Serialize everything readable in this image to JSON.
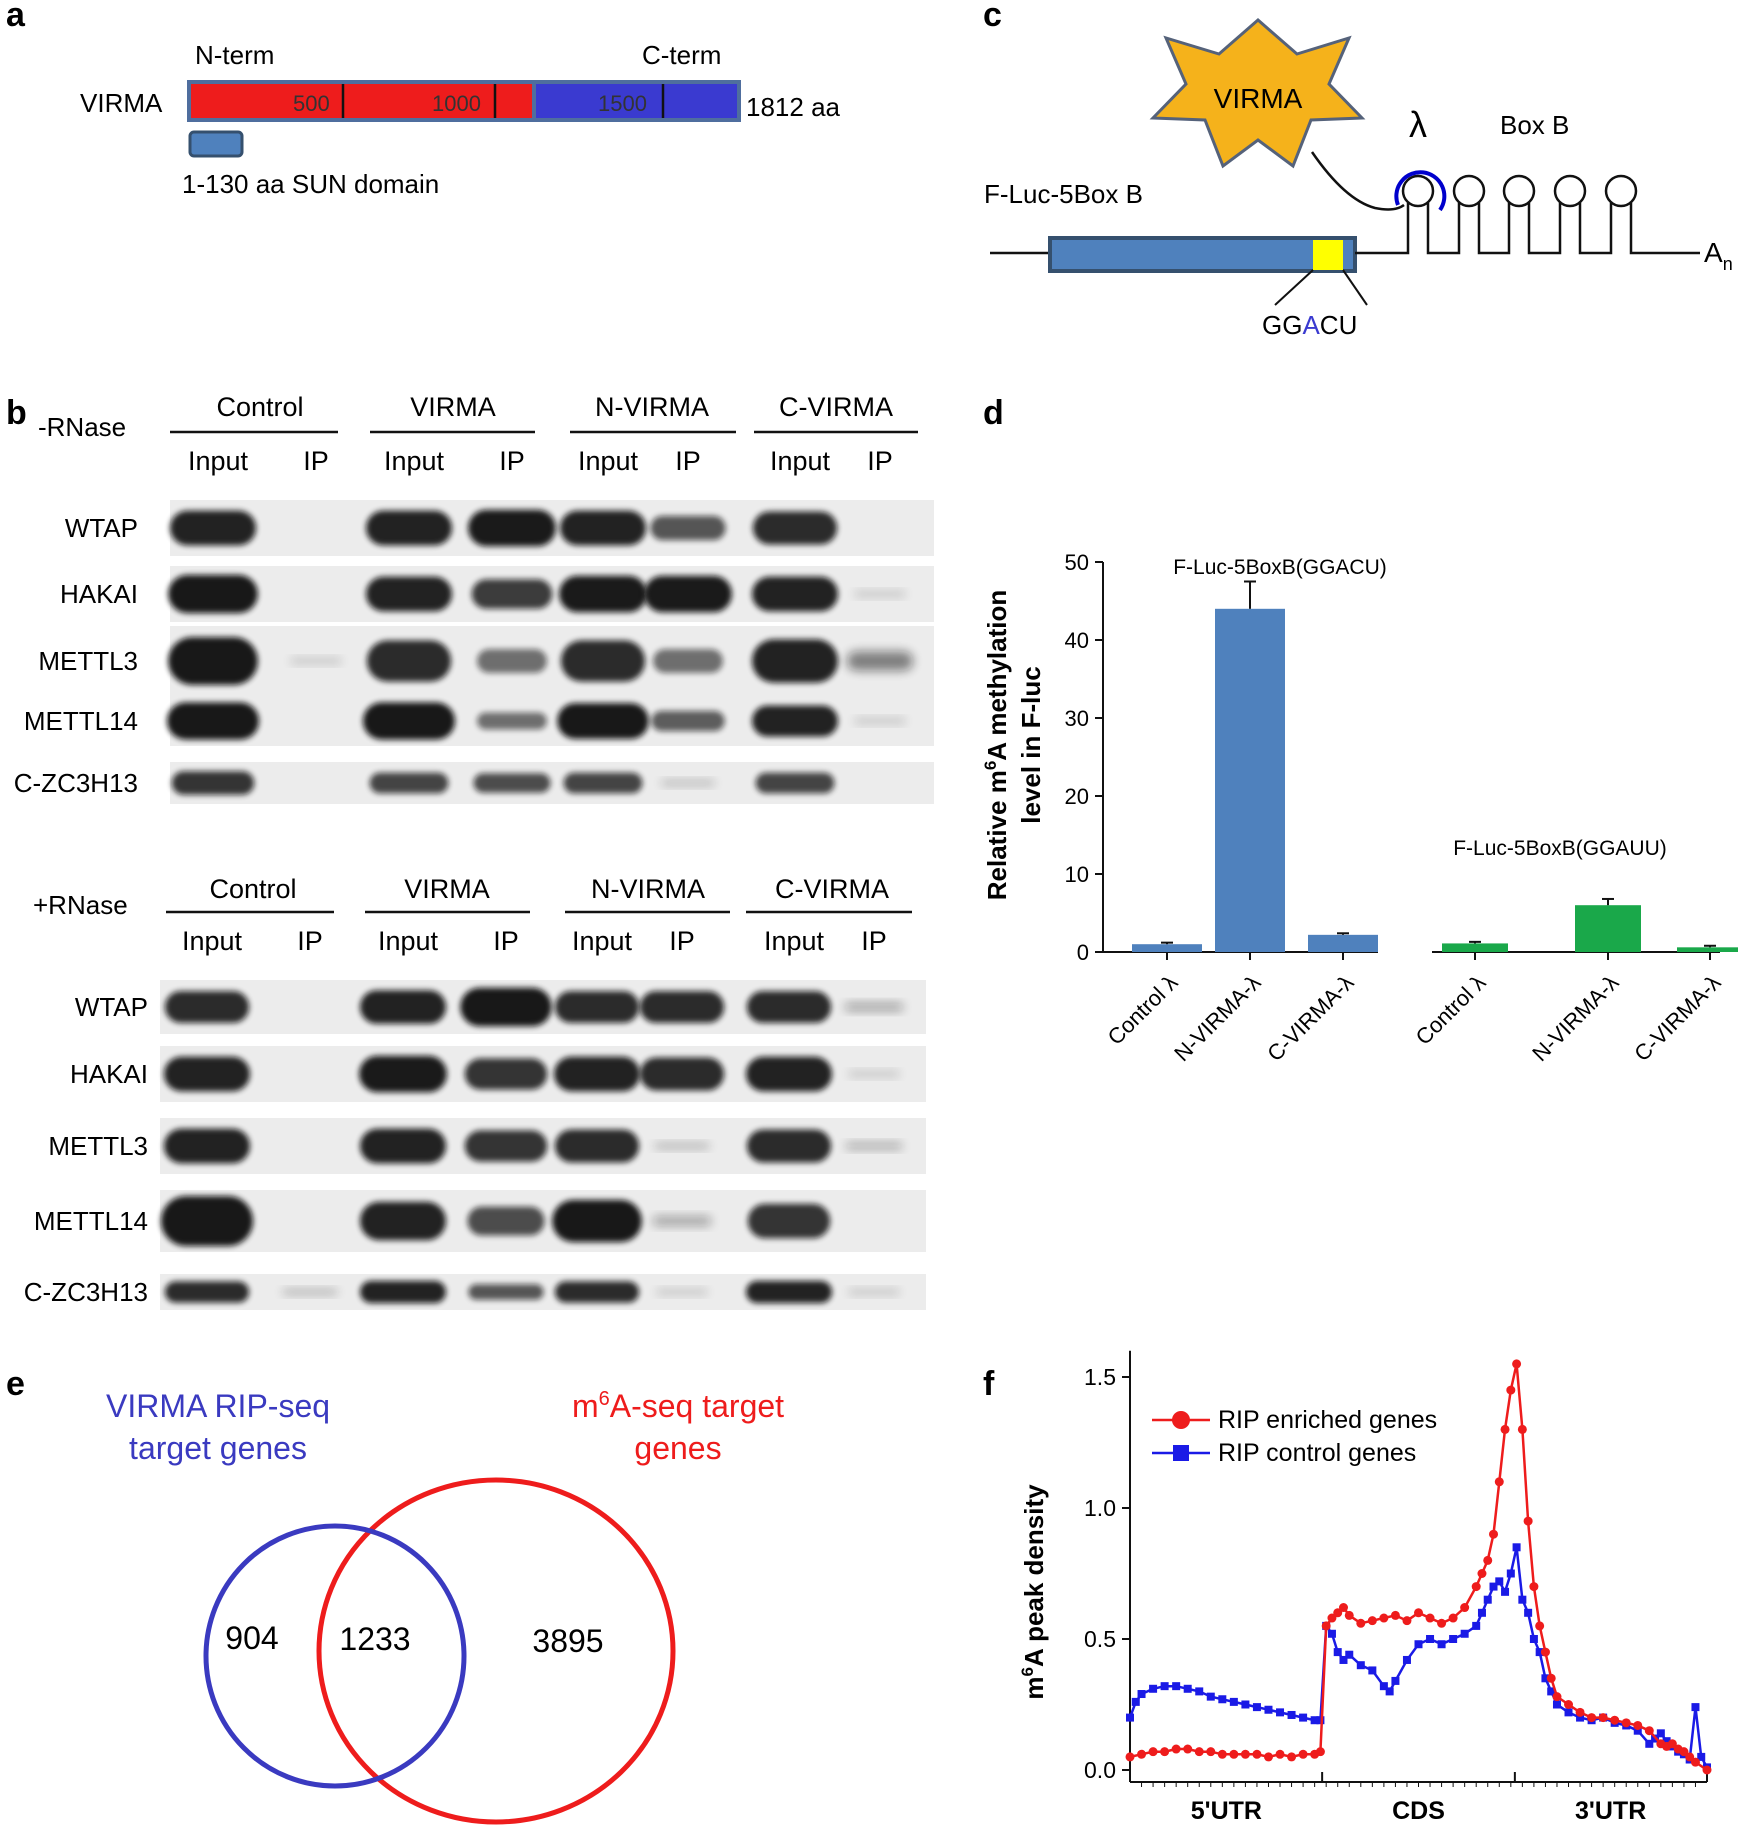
{
  "panels": {
    "a": {
      "letter": "a",
      "n_term": "N-term",
      "c_term": "C-term",
      "protein": "VIRMA",
      "ticks": [
        "500",
        "1000",
        "1500"
      ],
      "length": "1812 aa",
      "domain_label": "1-130 aa SUN domain",
      "colors": {
        "n_half": "#ee1c1c",
        "c_half": "#3a3ad0",
        "domain": "#4f81bd"
      }
    },
    "b": {
      "letter": "b",
      "blots": [
        {
          "condition": "-RNase",
          "groups": [
            "Control",
            "VIRMA",
            "N-VIRMA",
            "C-VIRMA"
          ],
          "lanes": [
            "Input",
            "IP",
            "Input",
            "IP",
            "Input",
            "IP",
            "Input",
            "IP"
          ],
          "proteins": [
            "WTAP",
            "HAKAI",
            "METTL3",
            "METTL14",
            "C-ZC3H13"
          ]
        },
        {
          "condition": "+RNase",
          "groups": [
            "Control",
            "VIRMA",
            "N-VIRMA",
            "C-VIRMA"
          ],
          "lanes": [
            "Input",
            "IP",
            "Input",
            "IP",
            "Input",
            "IP",
            "Input",
            "IP"
          ],
          "proteins": [
            "WTAP",
            "HAKAI",
            "METTL3",
            "METTL14",
            "C-ZC3H13"
          ]
        }
      ]
    },
    "c": {
      "letter": "c",
      "tether": "VIRMA",
      "lambda": "λ",
      "boxb": "Box B",
      "reporter": "F-Luc-5Box B",
      "motif_pre": "GG",
      "motif_a": "A",
      "motif_post": "CU",
      "polya": "A",
      "polya_sub": "n",
      "colors": {
        "star": "#f5b21b",
        "cds": "#4f81bd",
        "site": "#ffff00",
        "lambda_arc": "#0000cc"
      }
    },
    "d": {
      "letter": "d",
      "ylabel_pre": "Relative m",
      "ylabel_sup": "6",
      "ylabel_post": "A methylation",
      "ylabel_line2": "level in F-luc"
    },
    "e": {
      "letter": "e",
      "left_set_line1": "VIRMA RIP-seq",
      "left_set_line2": "target genes",
      "right_set_pre": "m",
      "right_set_sup": "6",
      "right_set_post": "A-seq target",
      "right_set_line2": "genes",
      "left_only": "904",
      "overlap": "1233",
      "right_only": "3895",
      "colors": {
        "left": "#3a3ac0",
        "right": "#ee1c1c"
      }
    },
    "f": {
      "letter": "f",
      "ylabel_pre": "m",
      "ylabel_sup": "6",
      "ylabel_post": "A peak density"
    }
  },
  "chart_data": [
    {
      "type": "bar",
      "panel": "d",
      "ylim": [
        0,
        50
      ],
      "yticks": [
        "0",
        "10",
        "20",
        "30",
        "40",
        "50"
      ],
      "groups": [
        {
          "label": "F-Luc-5BoxB(GGACU)",
          "color": "#4f81bd",
          "categories": [
            "Control λ",
            "N-VIRMA-λ",
            "C-VIRMA-λ"
          ],
          "values": [
            1.0,
            44.0,
            2.2
          ],
          "errors": [
            0.2,
            3.5,
            0.2
          ]
        },
        {
          "label": "F-Luc-5BoxB(GGAUU)",
          "color": "#1aa84a",
          "categories": [
            "Control λ",
            "N-VIRMA-λ",
            "C-VIRMA-λ"
          ],
          "values": [
            1.1,
            6.0,
            0.6
          ],
          "errors": [
            0.2,
            0.8,
            0.2
          ]
        }
      ]
    },
    {
      "type": "line",
      "panel": "f",
      "ylim": [
        0,
        1.6
      ],
      "yticks": [
        "0.0",
        "0.5",
        "1.0",
        "1.5"
      ],
      "regions": [
        "5'UTR",
        "CDS",
        "3'UTR"
      ],
      "x_note": "relative transcript position, 0-100 (5'UTR 0-33, CDS 33-67, 3'UTR 67-100)",
      "series": [
        {
          "name": "RIP enriched genes",
          "color": "#ee1c1c",
          "marker": "circle",
          "x": [
            0,
            2,
            4,
            6,
            8,
            10,
            12,
            14,
            16,
            18,
            20,
            22,
            24,
            26,
            28,
            30,
            32,
            33,
            34,
            35,
            36,
            37,
            38,
            40,
            42,
            44,
            46,
            48,
            50,
            52,
            54,
            56,
            58,
            60,
            61,
            62,
            63,
            64,
            65,
            66,
            67,
            68,
            69,
            70,
            71,
            72,
            73,
            74,
            76,
            78,
            80,
            82,
            84,
            86,
            88,
            90,
            92,
            93,
            94,
            95,
            96,
            97,
            98,
            100
          ],
          "y": [
            0.05,
            0.06,
            0.07,
            0.07,
            0.08,
            0.08,
            0.07,
            0.07,
            0.06,
            0.06,
            0.06,
            0.06,
            0.05,
            0.06,
            0.05,
            0.06,
            0.06,
            0.07,
            0.55,
            0.58,
            0.6,
            0.62,
            0.59,
            0.56,
            0.57,
            0.58,
            0.59,
            0.57,
            0.6,
            0.58,
            0.56,
            0.58,
            0.62,
            0.7,
            0.75,
            0.8,
            0.9,
            1.1,
            1.3,
            1.45,
            1.55,
            1.3,
            0.95,
            0.7,
            0.55,
            0.45,
            0.35,
            0.28,
            0.25,
            0.22,
            0.2,
            0.2,
            0.19,
            0.18,
            0.17,
            0.15,
            0.1,
            0.09,
            0.1,
            0.08,
            0.07,
            0.05,
            0.03,
            0.0
          ]
        },
        {
          "name": "RIP control genes",
          "color": "#1a1ae6",
          "marker": "square",
          "x": [
            0,
            1,
            2,
            4,
            6,
            8,
            10,
            12,
            14,
            16,
            18,
            20,
            22,
            24,
            26,
            28,
            30,
            32,
            33,
            34,
            35,
            36,
            37,
            38,
            40,
            42,
            44,
            45,
            46,
            48,
            50,
            52,
            54,
            56,
            58,
            60,
            61,
            62,
            63,
            64,
            65,
            66,
            67,
            68,
            69,
            70,
            71,
            72,
            73,
            74,
            76,
            78,
            80,
            82,
            84,
            86,
            88,
            90,
            91,
            92,
            93,
            94,
            95,
            96,
            97,
            98,
            99,
            100
          ],
          "y": [
            0.2,
            0.26,
            0.29,
            0.31,
            0.32,
            0.32,
            0.31,
            0.3,
            0.28,
            0.27,
            0.26,
            0.25,
            0.24,
            0.23,
            0.22,
            0.21,
            0.2,
            0.19,
            0.19,
            0.55,
            0.52,
            0.45,
            0.42,
            0.44,
            0.4,
            0.38,
            0.32,
            0.3,
            0.34,
            0.42,
            0.48,
            0.5,
            0.48,
            0.5,
            0.52,
            0.55,
            0.6,
            0.65,
            0.7,
            0.72,
            0.68,
            0.75,
            0.85,
            0.65,
            0.6,
            0.5,
            0.45,
            0.35,
            0.3,
            0.25,
            0.22,
            0.2,
            0.19,
            0.2,
            0.18,
            0.17,
            0.15,
            0.1,
            0.12,
            0.14,
            0.11,
            0.09,
            0.07,
            0.06,
            0.04,
            0.24,
            0.05,
            0.01
          ]
        }
      ]
    }
  ]
}
